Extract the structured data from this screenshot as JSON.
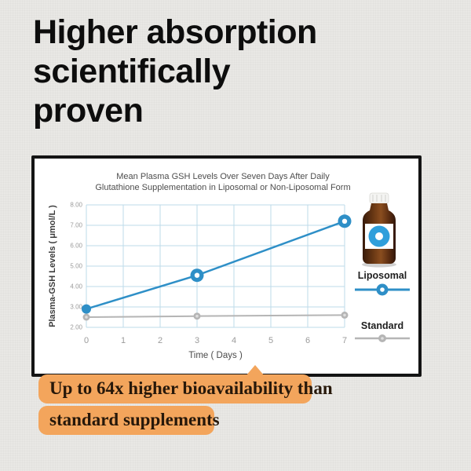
{
  "heading": {
    "lines": [
      "Higher absorption",
      "scientifically",
      "proven"
    ]
  },
  "chart_card": {
    "title_lines": [
      "Mean Plasma GSH Levels Over Seven Days After Daily",
      "Glutathione Supplementation in Liposomal or Non-Liposomal Form"
    ]
  },
  "chart_data": {
    "type": "line",
    "title": "Mean Plasma GSH Levels Over Seven Days After Daily Glutathione Supplementation in Liposomal or Non-Liposomal Form",
    "xlabel": "Time ( Days )",
    "ylabel": "Plasma-GSH Levels ( μmol/L )",
    "xlim": [
      0,
      7
    ],
    "ylim": [
      2,
      8
    ],
    "xticks": [
      "0",
      "1",
      "2",
      "3",
      "4",
      "5",
      "6",
      "7"
    ],
    "ytick_labels": [
      "8.00",
      "7.00",
      "6.00",
      "5.00",
      "4.00",
      "3.00",
      "2.00"
    ],
    "ytick_values": [
      8,
      7,
      6,
      5,
      4,
      3,
      2
    ],
    "grid": true,
    "x": [
      0,
      3,
      7
    ],
    "series": [
      {
        "name": "Liposomal",
        "values": [
          2.9,
          4.55,
          7.2
        ],
        "color": "#2e8fc7"
      },
      {
        "name": "Standard",
        "values": [
          2.5,
          2.55,
          2.6
        ],
        "color": "#b5b5b5"
      }
    ],
    "legend_position": "right"
  },
  "legend": {
    "items": [
      {
        "label": "Liposomal",
        "color": "#2e8fc7",
        "marker": "donut"
      },
      {
        "label": "Standard",
        "color": "#b5b5b5",
        "marker": "dot"
      }
    ]
  },
  "callout": {
    "lines": [
      "Up to 64x higher bioavailability than",
      "standard supplements"
    ],
    "highlight_color": "#f3a55c"
  },
  "colors": {
    "background": "#e9e8e5",
    "card_border": "#141414",
    "grid_blue": "#bedbea",
    "tick_text": "#9b9b9b",
    "axis_title": "#3c3c3c",
    "accent_blue": "#2e8fc7",
    "line_gray": "#b5b5b5",
    "callout_orange": "#f3a55c",
    "bottle_brown": "#5b2d11",
    "label_blue": "#2f9fdb"
  }
}
